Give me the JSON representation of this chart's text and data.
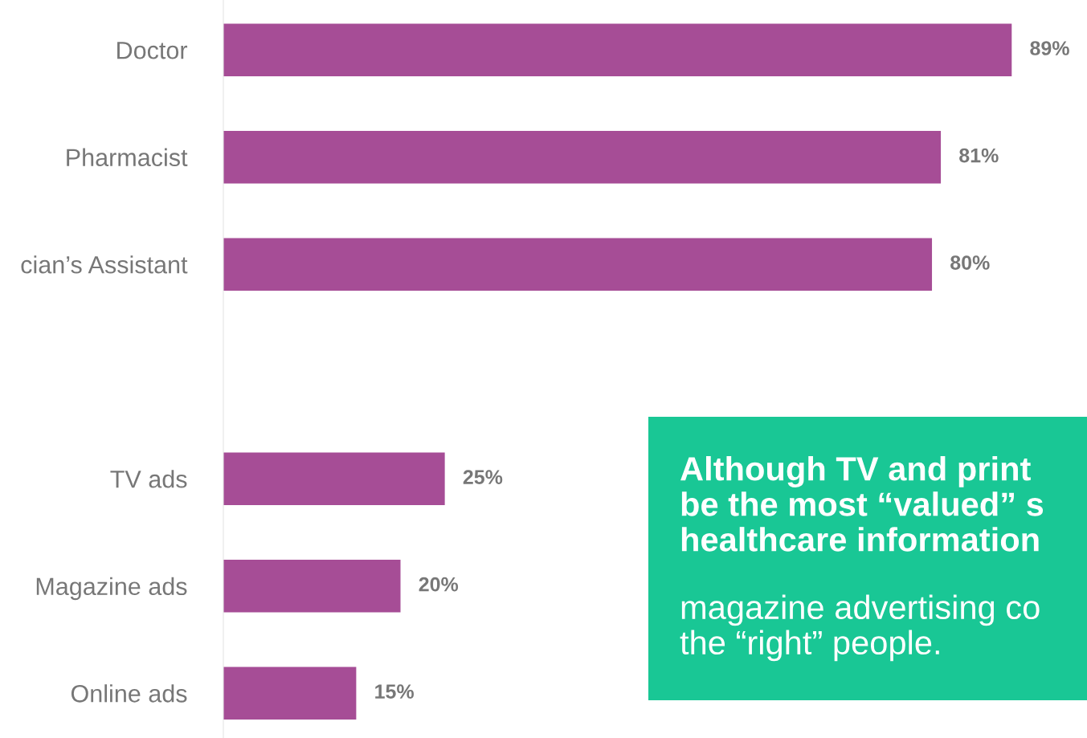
{
  "chart_data": {
    "type": "bar",
    "orientation": "horizontal",
    "categories": [
      "Doctor",
      "Pharmacist",
      "cian’s Assistant",
      null,
      "TV ads",
      "Magazine ads",
      "Online ads"
    ],
    "values": [
      89,
      81,
      80,
      null,
      25,
      20,
      15
    ],
    "value_labels": [
      "89%",
      "81%",
      "80%",
      null,
      "25%",
      "20%",
      "15%"
    ],
    "color": "#a64d96",
    "xlim": [
      0,
      97.5
    ],
    "tick_labels": "y",
    "grid": false,
    "legend": false,
    "annotations": [
      "Although TV and print\nbe the most “valued” s\nhealthcare information",
      "magazine advertising co\nthe “right” people."
    ]
  }
}
